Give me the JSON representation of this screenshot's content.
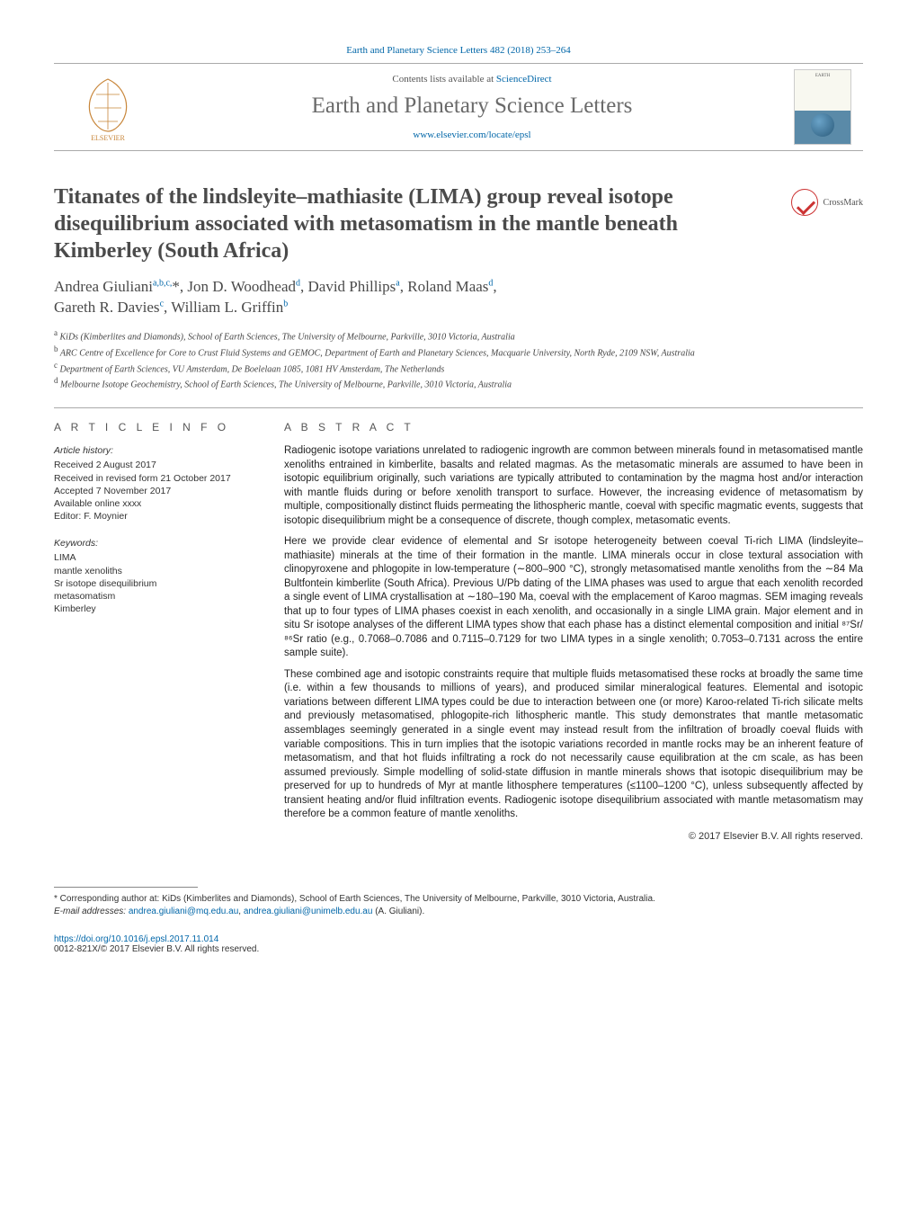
{
  "colors": {
    "link": "#0066a8",
    "text_gray": "#4a4a4a",
    "divider": "#aaa"
  },
  "header": {
    "top_link_prefix": "Earth and Planetary Science Letters 482 (2018) 253–264",
    "contents_line_prefix": "Contents lists available at ",
    "contents_line_link": "ScienceDirect",
    "journal_name": "Earth and Planetary Science Letters",
    "journal_url": "www.elsevier.com/locate/epsl",
    "publisher": "ELSEVIER"
  },
  "article": {
    "title": "Titanates of the lindsleyite–mathiasite (LIMA) group reveal isotope disequilibrium associated with metasomatism in the mantle beneath Kimberley (South Africa)",
    "crossmark_label": "CrossMark"
  },
  "authors_line1_html": "Andrea Giuliani<sup>a,b,c,</sup>*, Jon D. Woodhead<sup>d</sup>, David Phillips<sup>a</sup>, Roland Maas<sup>d</sup>,",
  "authors_line2_html": "Gareth R. Davies<sup>c</sup>, William L. Griffin<sup>b</sup>",
  "affiliations": [
    {
      "tag": "a",
      "text": "KiDs (Kimberlites and Diamonds), School of Earth Sciences, The University of Melbourne, Parkville, 3010 Victoria, Australia"
    },
    {
      "tag": "b",
      "text": "ARC Centre of Excellence for Core to Crust Fluid Systems and GEMOC, Department of Earth and Planetary Sciences, Macquarie University, North Ryde, 2109 NSW, Australia"
    },
    {
      "tag": "c",
      "text": "Department of Earth Sciences, VU Amsterdam, De Boelelaan 1085, 1081 HV Amsterdam, The Netherlands"
    },
    {
      "tag": "d",
      "text": "Melbourne Isotope Geochemistry, School of Earth Sciences, The University of Melbourne, Parkville, 3010 Victoria, Australia"
    }
  ],
  "article_info": {
    "heading": "A R T I C L E   I N F O",
    "history_label": "Article history:",
    "history": [
      "Received 2 August 2017",
      "Received in revised form 21 October 2017",
      "Accepted 7 November 2017",
      "Available online xxxx",
      "Editor: F. Moynier"
    ],
    "keywords_label": "Keywords:",
    "keywords": [
      "LIMA",
      "mantle xenoliths",
      "Sr isotope disequilibrium",
      "metasomatism",
      "Kimberley"
    ]
  },
  "abstract": {
    "heading": "A B S T R A C T",
    "paragraphs": [
      "Radiogenic isotope variations unrelated to radiogenic ingrowth are common between minerals found in metasomatised mantle xenoliths entrained in kimberlite, basalts and related magmas. As the metasomatic minerals are assumed to have been in isotopic equilibrium originally, such variations are typically attributed to contamination by the magma host and/or interaction with mantle fluids during or before xenolith transport to surface. However, the increasing evidence of metasomatism by multiple, compositionally distinct fluids permeating the lithospheric mantle, coeval with specific magmatic events, suggests that isotopic disequilibrium might be a consequence of discrete, though complex, metasomatic events.",
      "Here we provide clear evidence of elemental and Sr isotope heterogeneity between coeval Ti-rich LIMA (lindsleyite–mathiasite) minerals at the time of their formation in the mantle. LIMA minerals occur in close textural association with clinopyroxene and phlogopite in low-temperature (∼800–900 °C), strongly metasomatised mantle xenoliths from the ∼84 Ma Bultfontein kimberlite (South Africa). Previous U/Pb dating of the LIMA phases was used to argue that each xenolith recorded a single event of LIMA crystallisation at ∼180–190 Ma, coeval with the emplacement of Karoo magmas. SEM imaging reveals that up to four types of LIMA phases coexist in each xenolith, and occasionally in a single LIMA grain. Major element and in situ Sr isotope analyses of the different LIMA types show that each phase has a distinct elemental composition and initial ⁸⁷Sr/⁸⁶Sr ratio (e.g., 0.7068–0.7086 and 0.7115–0.7129 for two LIMA types in a single xenolith; 0.7053–0.7131 across the entire sample suite).",
      "These combined age and isotopic constraints require that multiple fluids metasomatised these rocks at broadly the same time (i.e. within a few thousands to millions of years), and produced similar mineralogical features. Elemental and isotopic variations between different LIMA types could be due to interaction between one (or more) Karoo-related Ti-rich silicate melts and previously metasomatised, phlogopite-rich lithospheric mantle. This study demonstrates that mantle metasomatic assemblages seemingly generated in a single event may instead result from the infiltration of broadly coeval fluids with variable compositions. This in turn implies that the isotopic variations recorded in mantle rocks may be an inherent feature of metasomatism, and that hot fluids infiltrating a rock do not necessarily cause equilibration at the cm scale, as has been assumed previously. Simple modelling of solid-state diffusion in mantle minerals shows that isotopic disequilibrium may be preserved for up to hundreds of Myr at mantle lithosphere temperatures (≤1100–1200 °C), unless subsequently affected by transient heating and/or fluid infiltration events. Radiogenic isotope disequilibrium associated with mantle metasomatism may therefore be a common feature of mantle xenoliths."
    ],
    "copyright": "© 2017 Elsevier B.V. All rights reserved."
  },
  "footnote": {
    "corresponding_label": "* Corresponding author at: KiDs (Kimberlites and Diamonds), School of Earth Sciences, The University of Melbourne, Parkville, 3010 Victoria, Australia.",
    "email_label": "E-mail addresses:",
    "emails": [
      "andrea.giuliani@mq.edu.au",
      "andrea.giuliani@unimelb.edu.au"
    ],
    "email_suffix": "(A. Giuliani)."
  },
  "bottom": {
    "doi": "https://doi.org/10.1016/j.epsl.2017.11.014",
    "issn_line": "0012-821X/© 2017 Elsevier B.V. All rights reserved."
  }
}
